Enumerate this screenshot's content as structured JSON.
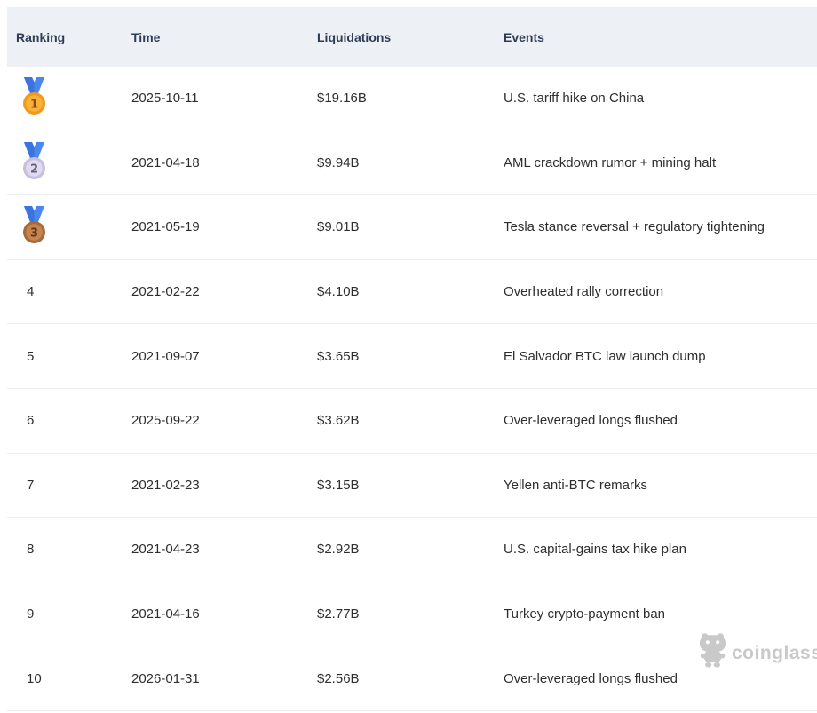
{
  "table": {
    "columns": [
      {
        "key": "ranking",
        "label": "Ranking"
      },
      {
        "key": "time",
        "label": "Time"
      },
      {
        "key": "liquidations",
        "label": "Liquidations"
      },
      {
        "key": "events",
        "label": "Events"
      }
    ],
    "rows": [
      {
        "rank": "1",
        "medal": "gold",
        "time": "2025-10-11",
        "liquidations": "$19.16B",
        "event": "U.S. tariff hike on China"
      },
      {
        "rank": "2",
        "medal": "silver",
        "time": "2021-04-18",
        "liquidations": "$9.94B",
        "event": "AML crackdown rumor + mining halt"
      },
      {
        "rank": "3",
        "medal": "bronze",
        "time": "2021-05-19",
        "liquidations": "$9.01B",
        "event": "Tesla stance reversal + regulatory tightening"
      },
      {
        "rank": "4",
        "medal": null,
        "time": "2021-02-22",
        "liquidations": "$4.10B",
        "event": "Overheated rally correction"
      },
      {
        "rank": "5",
        "medal": null,
        "time": "2021-09-07",
        "liquidations": "$3.65B",
        "event": "El Salvador BTC law launch dump"
      },
      {
        "rank": "6",
        "medal": null,
        "time": "2025-09-22",
        "liquidations": "$3.62B",
        "event": "Over-leveraged longs flushed"
      },
      {
        "rank": "7",
        "medal": null,
        "time": "2021-02-23",
        "liquidations": "$3.15B",
        "event": "Yellen anti-BTC remarks"
      },
      {
        "rank": "8",
        "medal": null,
        "time": "2021-04-23",
        "liquidations": "$2.92B",
        "event": "U.S. capital-gains tax hike plan"
      },
      {
        "rank": "9",
        "medal": null,
        "time": "2021-04-16",
        "liquidations": "$2.77B",
        "event": "Turkey crypto-payment ban"
      },
      {
        "rank": "10",
        "medal": null,
        "time": "2026-01-31",
        "liquidations": "$2.56B",
        "event": "Over-leveraged longs flushed"
      }
    ]
  },
  "watermark": {
    "brand": "coinglass",
    "icon": "coinglass-mascot-icon",
    "color": "#c9c9c9"
  },
  "colors": {
    "header_bg": "#edf0f4",
    "header_text": "#2c3c56",
    "body_text": "#2e2e2e",
    "divider": "#ececec",
    "medals": {
      "ribbon": "#4a87ef",
      "ribbon_dark": "#3a74dd",
      "gold": {
        "ring": "#ef9a18",
        "face": "#f9b13a",
        "num": "#8a4a1d"
      },
      "silver": {
        "ring": "#c7bfdf",
        "face": "#e0dbef",
        "num": "#66607d"
      },
      "bronze": {
        "ring": "#a96a39",
        "face": "#c5854f",
        "num": "#5f341a"
      }
    }
  }
}
